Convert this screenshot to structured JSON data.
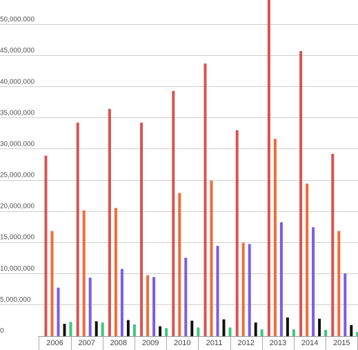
{
  "chart_data": {
    "type": "bar",
    "categories": [
      "2006",
      "2007",
      "2008",
      "2009",
      "2010",
      "2011",
      "2012",
      "2013",
      "2014",
      "2015"
    ],
    "series": [
      {
        "color": "#d9534f",
        "values": [
          29000000,
          34300000,
          36500000,
          34300000,
          39400000,
          43800000,
          33100000,
          54000000,
          45800000,
          29300000
        ]
      },
      {
        "color": "#f26b3a",
        "values": [
          16900000,
          20200000,
          20600000,
          9800000,
          23000000,
          25000000,
          15000000,
          31700000,
          24500000,
          16900000
        ]
      },
      {
        "color": "#7b5ce6",
        "values": [
          7800000,
          9400000,
          10800000,
          9500000,
          12600000,
          14500000,
          14800000,
          18300000,
          17500000,
          10100000
        ]
      },
      {
        "color": "#111111",
        "values": [
          2000000,
          2400000,
          2600000,
          1600000,
          2500000,
          2700000,
          2200000,
          3000000,
          2800000,
          1800000
        ]
      },
      {
        "color": "#3cc97a",
        "values": [
          2300000,
          2200000,
          1900000,
          1300000,
          1400000,
          1400000,
          1100000,
          1100000,
          1000000,
          700000
        ]
      }
    ],
    "yticks": [
      {
        "value": 0,
        "label": "0"
      },
      {
        "value": 5000000,
        "label": "5,000,000"
      },
      {
        "value": 10000000,
        "label": "10,000,000"
      },
      {
        "value": 15000000,
        "label": "15,000,000"
      },
      {
        "value": 20000000,
        "label": "20,000,000"
      },
      {
        "value": 25000000,
        "label": "25,000,000"
      },
      {
        "value": 30000000,
        "label": "30,000,000"
      },
      {
        "value": 35000000,
        "label": "35,000,000"
      },
      {
        "value": 40000000,
        "label": "40,000,000"
      },
      {
        "value": 45000000,
        "label": "45,000,000"
      },
      {
        "value": 50000000,
        "label": "50,000,000"
      }
    ],
    "ylim": [
      0,
      54000000
    ],
    "grid": true,
    "legend": "none",
    "title": "",
    "xlabel": "",
    "ylabel": ""
  }
}
